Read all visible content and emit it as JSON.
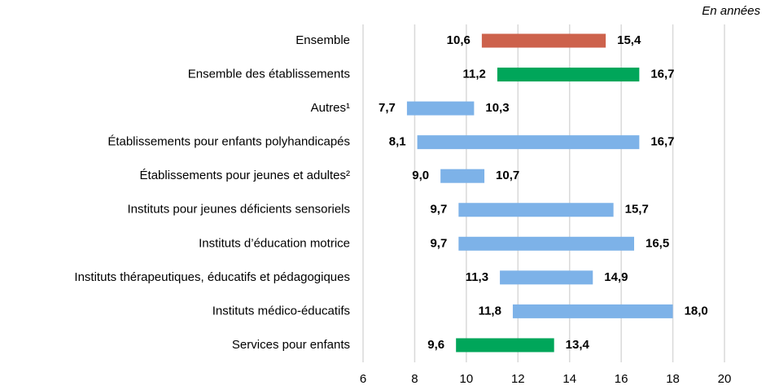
{
  "chart_data": {
    "type": "range",
    "unit_label": "En années",
    "categories": [
      "Ensemble",
      "Ensemble des établissements",
      "Autres¹",
      "Établissements pour enfants polyhandicapés",
      "Établissements pour jeunes et adultes²",
      "Instituts pour jeunes déficients sensoriels",
      "Instituts d’éducation motrice",
      "Instituts thérapeutiques, éducatifs et pédagogiques",
      "Instituts médico-éducatifs",
      "Services pour enfants"
    ],
    "starts": [
      10.6,
      11.2,
      7.7,
      8.1,
      9.0,
      9.7,
      9.7,
      11.3,
      11.8,
      9.6
    ],
    "start_labels": [
      "10,6",
      "11,2",
      "7,7",
      "8,1",
      "9,0",
      "9,7",
      "9,7",
      "11,3",
      "11,8",
      "9,6"
    ],
    "ends": [
      15.4,
      16.7,
      10.3,
      16.7,
      10.7,
      15.7,
      16.5,
      14.9,
      18.0,
      13.4
    ],
    "end_labels": [
      "15,4",
      "16,7",
      "10,3",
      "16,7",
      "10,7",
      "15,7",
      "16,5",
      "14,9",
      "18,0",
      "13,4"
    ],
    "colors": [
      "#cd624c",
      "#00a65a",
      "#7db2e8",
      "#7db2e8",
      "#7db2e8",
      "#7db2e8",
      "#7db2e8",
      "#7db2e8",
      "#7db2e8",
      "#00a65a"
    ],
    "xlim": [
      6,
      20
    ],
    "xticks": [
      6,
      8,
      10,
      12,
      14,
      16,
      18,
      20
    ],
    "grid": true
  }
}
